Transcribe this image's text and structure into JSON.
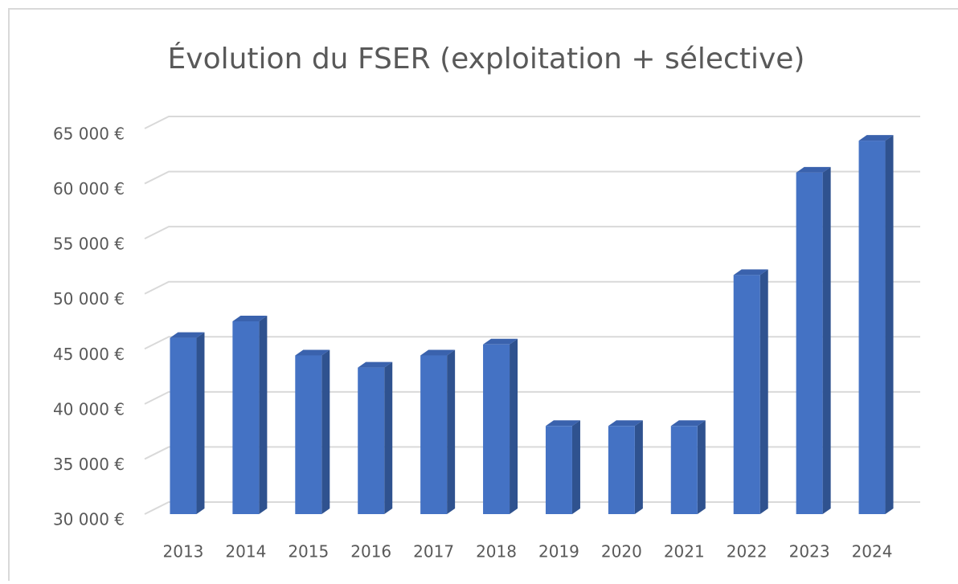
{
  "chart_data": {
    "type": "bar",
    "title": "Évolution du FSER (exploitation + sélective)",
    "categories": [
      "2013",
      "2014",
      "2015",
      "2016",
      "2017",
      "2018",
      "2019",
      "2020",
      "2021",
      "2022",
      "2023",
      "2024"
    ],
    "values": [
      46000,
      47500,
      44400,
      43300,
      44400,
      45400,
      38000,
      38000,
      38000,
      51700,
      61000,
      63900
    ],
    "color": "#4472c4",
    "ylim": [
      30000,
      65000
    ],
    "yticks": [
      {
        "value": 30000,
        "label": "30 000 €"
      },
      {
        "value": 35000,
        "label": "35 000 €"
      },
      {
        "value": 40000,
        "label": "40 000 €"
      },
      {
        "value": 45000,
        "label": "45 000 €"
      },
      {
        "value": 50000,
        "label": "50 000 €"
      },
      {
        "value": 55000,
        "label": "55 000 €"
      },
      {
        "value": 60000,
        "label": "60 000 €"
      },
      {
        "value": 65000,
        "label": "65 000 €"
      }
    ],
    "grid": true
  }
}
